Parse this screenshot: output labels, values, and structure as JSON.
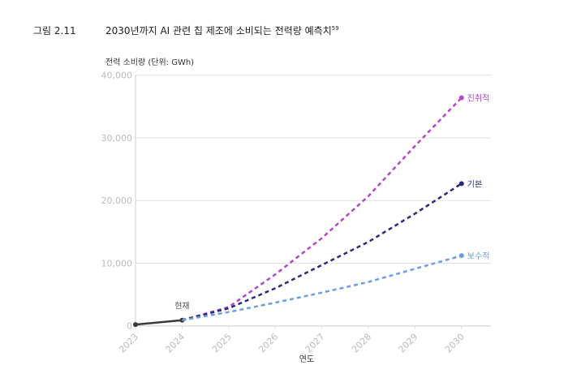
{
  "figure_number": "그림 2.11",
  "title": "2030년까지 AI 관련 칩 제조에 소비되는 전력량 예측치",
  "title_superscript": "59",
  "chart_data": {
    "type": "line",
    "ylabel": "전력 소비량 (단위: GWh)",
    "xlabel": "연도",
    "ylim": [
      0,
      40000
    ],
    "yticks": [
      "0",
      "10,000",
      "20,000",
      "30,000",
      "40,000"
    ],
    "ytick_values": [
      0,
      10000,
      20000,
      30000,
      40000
    ],
    "x": [
      "2023",
      "2024",
      "2025",
      "2026",
      "2027",
      "2028",
      "2029",
      "2030"
    ],
    "grid": "horizontal",
    "annotation": "현재",
    "series": [
      {
        "name": "",
        "style": "solid",
        "color": "#3a3a3a",
        "x": [
          "2023",
          "2024"
        ],
        "values": [
          200,
          900
        ]
      },
      {
        "name": "진취적",
        "style": "dashed",
        "color": "#b048c8",
        "x": [
          "2024",
          "2025",
          "2026",
          "2027",
          "2028",
          "2029",
          "2030"
        ],
        "values": [
          900,
          3000,
          8200,
          14000,
          20700,
          28700,
          36400
        ]
      },
      {
        "name": "기본",
        "style": "dashed",
        "color": "#2b2a78",
        "x": [
          "2024",
          "2025",
          "2026",
          "2027",
          "2028",
          "2029",
          "2030"
        ],
        "values": [
          900,
          2800,
          6000,
          9700,
          13400,
          17900,
          22700
        ]
      },
      {
        "name": "보수적",
        "style": "dashed",
        "color": "#6c9ee0",
        "x": [
          "2024",
          "2025",
          "2026",
          "2027",
          "2028",
          "2029",
          "2030"
        ],
        "values": [
          900,
          2200,
          3700,
          5300,
          7000,
          9100,
          11200
        ]
      }
    ]
  }
}
